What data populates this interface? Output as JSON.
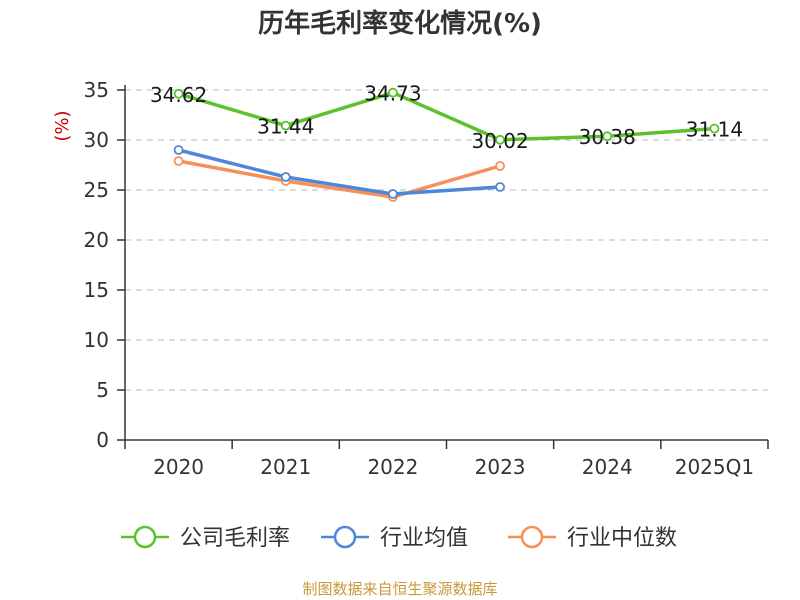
{
  "chart_data": {
    "type": "line",
    "title": "历年毛利率变化情况(%)",
    "ylabel": "(%)",
    "xlabel": "",
    "categories": [
      "2020",
      "2021",
      "2022",
      "2023",
      "2024",
      "2025Q1"
    ],
    "ylim": [
      0,
      35
    ],
    "yticks": [
      0,
      5,
      10,
      15,
      20,
      25,
      30,
      35
    ],
    "grid": true,
    "legend_position": "bottom",
    "series": [
      {
        "name": "公司毛利率",
        "color": "#5cc22c",
        "values": [
          34.62,
          31.44,
          34.73,
          30.02,
          30.38,
          31.14
        ],
        "labels": [
          "34.62",
          "31.44",
          "34.73",
          "30.02",
          "30.38",
          "31.14"
        ]
      },
      {
        "name": "行业均值",
        "color": "#4f86d8",
        "values": [
          29.0,
          26.3,
          24.6,
          25.3,
          null,
          null
        ]
      },
      {
        "name": "行业中位数",
        "color": "#f59058",
        "values": [
          27.9,
          25.9,
          24.3,
          27.4,
          null,
          null
        ]
      }
    ]
  },
  "source": "制图数据来自恒生聚源数据库"
}
